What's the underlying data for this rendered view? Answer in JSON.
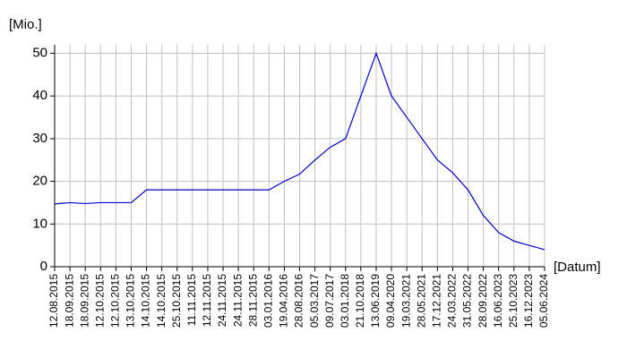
{
  "chart_data": {
    "type": "line",
    "y_label": "[Mio.]",
    "x_label": "[Datum]",
    "categories": [
      "12.08.2015",
      "18.09.2015",
      "18.09.2015",
      "12.10.2015",
      "12.10.2015",
      "13.10.2015",
      "14.10.2015",
      "14.10.2015",
      "25.10.2015",
      "11.11.2015",
      "12.11.2015",
      "24.11.2015",
      "24.11.2015",
      "28.11.2015",
      "03.01.2016",
      "19.04.2016",
      "28.08.2016",
      "05.03.2017",
      "09.07.2017",
      "03.01.2018",
      "21.10.2018",
      "13.06.2019",
      "09.04.2020",
      "19.03.2021",
      "28.05.2021",
      "17.12.2021",
      "24.03.2022",
      "31.05.2022",
      "28.09.2022",
      "16.06.2023",
      "25.10.2023",
      "16.12.2023",
      "05.06.2024"
    ],
    "values": [
      14.7,
      15,
      14.8,
      15,
      15,
      15,
      18,
      18,
      18,
      18,
      18,
      18,
      18,
      18,
      18,
      20,
      21.7,
      25,
      28,
      30,
      40,
      50,
      40,
      35,
      30,
      25,
      22,
      18,
      12,
      8,
      6,
      5,
      4
    ],
    "color": "#0000cc",
    "ylim": [
      0,
      52
    ],
    "yticks": [
      0,
      10,
      20,
      30,
      40,
      50
    ],
    "grid": true
  }
}
